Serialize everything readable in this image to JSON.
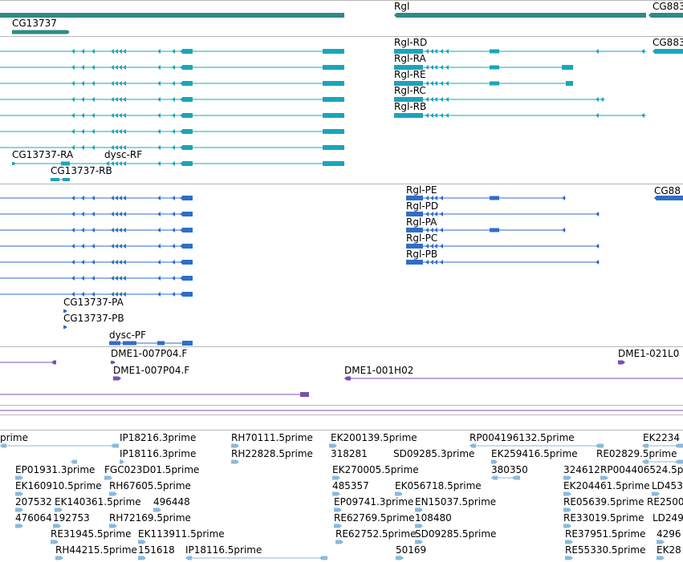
{
  "colors": {
    "gene": "#2f8a86",
    "transcript": "#1aa5bd",
    "protein": "#2f6ec8",
    "clone": "#7d4fb0",
    "est": "#8ab9dc",
    "separator": "#b8b8b8"
  },
  "icons": {
    "intron-direction": "chevron-left-icon"
  },
  "tracks": {
    "genes": {
      "labels": [
        "CG13737",
        "Rgl",
        "CG883"
      ]
    },
    "transcripts": {
      "labels": [
        "CG13737-RA",
        "dysc-RF",
        "CG13737-RB",
        "Rgl-RD",
        "Rgl-RA",
        "Rgl-RE",
        "Rgl-RC",
        "Rgl-RB",
        "CG883"
      ]
    },
    "proteins": {
      "labels": [
        "CG13737-PA",
        "CG13737-PB",
        "dysc-PF",
        "Rgl-PE",
        "Rgl-PD",
        "Rgl-PA",
        "Rgl-PC",
        "Rgl-PB",
        "CG88"
      ]
    },
    "clones": {
      "labels": [
        "DME1-007P04.F",
        "DME1-007P04.F",
        "DME1-001H02",
        "DME1-021L0"
      ]
    },
    "ests": {
      "labels": [
        "prime",
        "IP18216.3prime",
        "RH70111.5prime",
        "EK200139.5prime",
        "RP004196132.5prime",
        "EK2234",
        "IP18116.3prime",
        "RH22828.5prime",
        "318281",
        "SD09285.3prime",
        "EK259416.5prime",
        "RE02829.5prime",
        "EP01931.3prime",
        "FGC023D01.5prime",
        "EK270005.5prime",
        "380350",
        "324612",
        "RP004406524.5p",
        "EK160910.5prime",
        "RH67605.5prime",
        "485357",
        "EK056718.5prime",
        "EK204461.5prime",
        "LD453",
        "207532",
        "EK140361.5prime",
        "496448",
        "EP09741.3prime",
        "EN15037.5prime",
        "RE05639.5prime",
        "RE2500",
        "476064",
        "192753",
        "RH72169.5prime",
        "RE62769.5prime",
        "108480",
        "RE33019.5prime",
        "LD249",
        "RE31945.5prime",
        "EK113911.5prime",
        "RE62752.5prime",
        "SD09285.5prime",
        "RE37951.5prime",
        "4296",
        "RH44215.5prime",
        "151618",
        "IP18116.5prime",
        "50169",
        "RE55330.5prime",
        "EK28"
      ]
    }
  }
}
